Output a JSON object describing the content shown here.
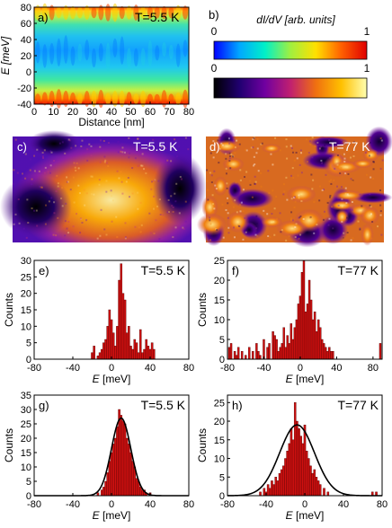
{
  "colorbars": {
    "label": "b)",
    "title": "dI/dV [arb. units]",
    "bar1": {
      "min_label": "0",
      "max_label": "1",
      "stops": [
        "#0000ff",
        "#00a8ff",
        "#00f0c8",
        "#a0f040",
        "#ffe000",
        "#ff6000",
        "#e00000"
      ]
    },
    "bar2": {
      "min_label": "0",
      "max_label": "1",
      "stops": [
        "#000000",
        "#200070",
        "#7000a0",
        "#c02070",
        "#f07010",
        "#ffc000",
        "#ffffb0"
      ]
    }
  },
  "maps": [
    {
      "label": "c)",
      "temp": "T=5.5 K"
    },
    {
      "label": "d)",
      "temp": "T=77 K"
    }
  ],
  "chart_data": [
    {
      "panel": "a)",
      "type": "heatmap",
      "annotation": "T=5.5 K",
      "xlabel": "Distance [nm]",
      "ylabel": "E [meV]",
      "xlim": [
        0,
        80
      ],
      "ylim": [
        -40,
        80
      ],
      "xticks": [
        0,
        10,
        20,
        30,
        40,
        50,
        60,
        70,
        80
      ],
      "yticks": [
        -40,
        -20,
        0,
        20,
        40,
        60,
        80
      ],
      "colormap": "dI/dV"
    },
    {
      "panel": "e)",
      "type": "bar",
      "annotation": "T=5.5 K",
      "xlabel": "E [meV]",
      "ylabel": "Counts",
      "xlim": [
        -80,
        80
      ],
      "ylim": [
        0,
        30
      ],
      "xticks": [
        -80,
        -40,
        0,
        40,
        80
      ],
      "yticks": [
        0,
        5,
        10,
        15,
        20,
        25,
        30
      ],
      "x": [
        -20,
        -18,
        -14,
        -12,
        -10,
        -8,
        -6,
        -4,
        -2,
        0,
        2,
        4,
        6,
        8,
        10,
        12,
        14,
        16,
        18,
        20,
        22,
        24,
        26,
        28,
        30,
        32,
        34,
        36,
        38,
        40,
        42,
        44
      ],
      "values": [
        2,
        4,
        1,
        2,
        3,
        5,
        6,
        10,
        15,
        12,
        8,
        4,
        10,
        24,
        29,
        20,
        18,
        8,
        10,
        4,
        3,
        6,
        5,
        2,
        9,
        2,
        3,
        6,
        4,
        3,
        5,
        3
      ]
    },
    {
      "panel": "f)",
      "type": "bar",
      "annotation": "T=77 K",
      "xlabel": "E [meV]",
      "ylabel": "Counts",
      "xlim": [
        -80,
        90
      ],
      "ylim": [
        0,
        25
      ],
      "xticks": [
        -80,
        -40,
        0,
        40,
        80
      ],
      "yticks": [
        0,
        5,
        10,
        15,
        20,
        25
      ],
      "x": [
        -78,
        -76,
        -72,
        -70,
        -68,
        -64,
        -60,
        -56,
        -52,
        -48,
        -46,
        -44,
        -40,
        -36,
        -34,
        -30,
        -28,
        -26,
        -24,
        -22,
        -20,
        -18,
        -16,
        -14,
        -12,
        -10,
        -8,
        -6,
        -4,
        -2,
        0,
        2,
        4,
        6,
        8,
        10,
        12,
        14,
        16,
        18,
        20,
        22,
        24,
        26,
        28,
        30,
        32,
        34,
        36,
        88
      ],
      "values": [
        3,
        4,
        2,
        1,
        3,
        2,
        1,
        3,
        2,
        4,
        2,
        1,
        5,
        3,
        4,
        7,
        6,
        5,
        2,
        3,
        4,
        8,
        3,
        6,
        4,
        9,
        5,
        8,
        10,
        14,
        16,
        22,
        25,
        12,
        14,
        20,
        15,
        10,
        12,
        7,
        10,
        8,
        5,
        4,
        3,
        2,
        3,
        2,
        2,
        4
      ]
    },
    {
      "panel": "g)",
      "type": "bar",
      "annotation": "T=5.5 K",
      "xlabel": "E [meV]",
      "ylabel": "Counts",
      "xlim": [
        -80,
        80
      ],
      "ylim": [
        0,
        35
      ],
      "xticks": [
        -80,
        -40,
        0,
        40,
        80
      ],
      "yticks": [
        0,
        5,
        10,
        15,
        20,
        25,
        30,
        35
      ],
      "x": [
        -14,
        -10,
        -8,
        -6,
        -4,
        -2,
        0,
        2,
        4,
        6,
        8,
        10,
        12,
        14,
        16,
        18,
        20,
        22,
        24,
        26,
        28,
        30,
        32,
        34,
        36,
        40
      ],
      "values": [
        1,
        2,
        3,
        5,
        8,
        12,
        15,
        18,
        20,
        24,
        30,
        28,
        26,
        25,
        20,
        18,
        15,
        12,
        10,
        6,
        5,
        3,
        2,
        2,
        1,
        1
      ],
      "fit": {
        "type": "gaussian",
        "center": 10,
        "sigma": 10,
        "amplitude": 27
      }
    },
    {
      "panel": "h)",
      "type": "bar",
      "annotation": "T=77 K",
      "xlabel": "E [meV]",
      "ylabel": "Counts",
      "xlim": [
        -80,
        80
      ],
      "ylim": [
        0,
        27
      ],
      "xticks": [
        -80,
        -40,
        0,
        40,
        80
      ],
      "yticks": [
        0,
        5,
        10,
        15,
        20,
        25
      ],
      "x": [
        -46,
        -42,
        -40,
        -38,
        -36,
        -34,
        -32,
        -30,
        -28,
        -26,
        -24,
        -22,
        -20,
        -18,
        -16,
        -14,
        -12,
        -10,
        -8,
        -6,
        -4,
        -2,
        0,
        2,
        4,
        6,
        8,
        10,
        12,
        14,
        16,
        20,
        24,
        70,
        74
      ],
      "values": [
        1,
        2,
        1,
        3,
        2,
        4,
        3,
        5,
        4,
        6,
        7,
        8,
        10,
        12,
        14,
        18,
        15,
        25,
        20,
        18,
        16,
        14,
        19,
        12,
        10,
        8,
        6,
        7,
        5,
        4,
        3,
        2,
        1,
        1,
        1
      ],
      "fit": {
        "type": "gaussian",
        "center": -8,
        "sigma": 18,
        "amplitude": 19
      }
    }
  ]
}
